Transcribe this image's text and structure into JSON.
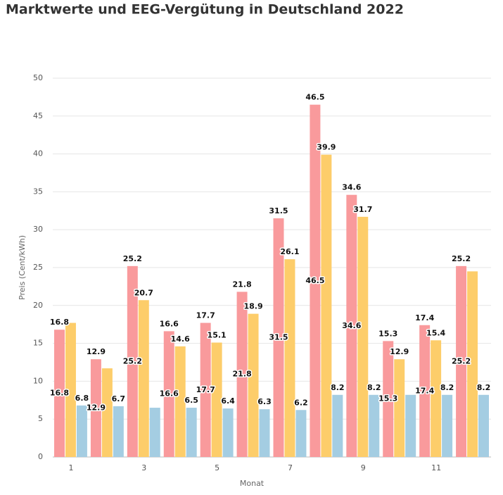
{
  "chart_data": {
    "type": "bar",
    "title": "Marktwerte und EEG-Vergütung in Deutschland 2022",
    "x_label": "Monat",
    "y_label": "Preis (Cent/kWh)",
    "categories": [
      "1",
      null,
      "3",
      null,
      "5",
      null,
      "7",
      null,
      "9",
      null,
      "11",
      null
    ],
    "series": [
      {
        "color": "#f99a9c",
        "values": [
          16.8,
          12.9,
          25.2,
          16.6,
          17.7,
          21.8,
          31.5,
          46.5,
          34.6,
          15.3,
          17.4,
          25.2
        ],
        "value_labels": [
          "16.8",
          "12.9",
          "25.2",
          "16.6",
          "17.7",
          "21.8",
          "31.5",
          "46.5",
          "34.6",
          "15.3",
          "17.4",
          "25.2"
        ]
      },
      {
        "color": "#fdcd6a",
        "values": [
          17.7,
          11.7,
          20.7,
          14.6,
          15.1,
          18.9,
          26.1,
          39.9,
          31.7,
          12.9,
          15.4,
          24.5
        ],
        "value_labels": [
          null,
          null,
          "20.7",
          "14.6",
          "15.1",
          "18.9",
          "26.1",
          "39.9",
          "31.7",
          "12.9",
          "15.4",
          null
        ]
      },
      {
        "color": "#a4cde2",
        "values": [
          6.8,
          6.7,
          6.5,
          6.5,
          6.4,
          6.3,
          6.2,
          8.2,
          8.2,
          8.2,
          8.2,
          8.2
        ],
        "value_labels": [
          "6.8",
          "6.7",
          null,
          "6.5",
          "6.4",
          "6.3",
          "6.2",
          "8.2",
          "8.2",
          null,
          "8.2",
          "8.2"
        ]
      }
    ],
    "ylim": [
      0,
      50
    ],
    "yticks": [
      0,
      5,
      10,
      15,
      20,
      25,
      30,
      35,
      40,
      45,
      50
    ],
    "grid": true
  }
}
